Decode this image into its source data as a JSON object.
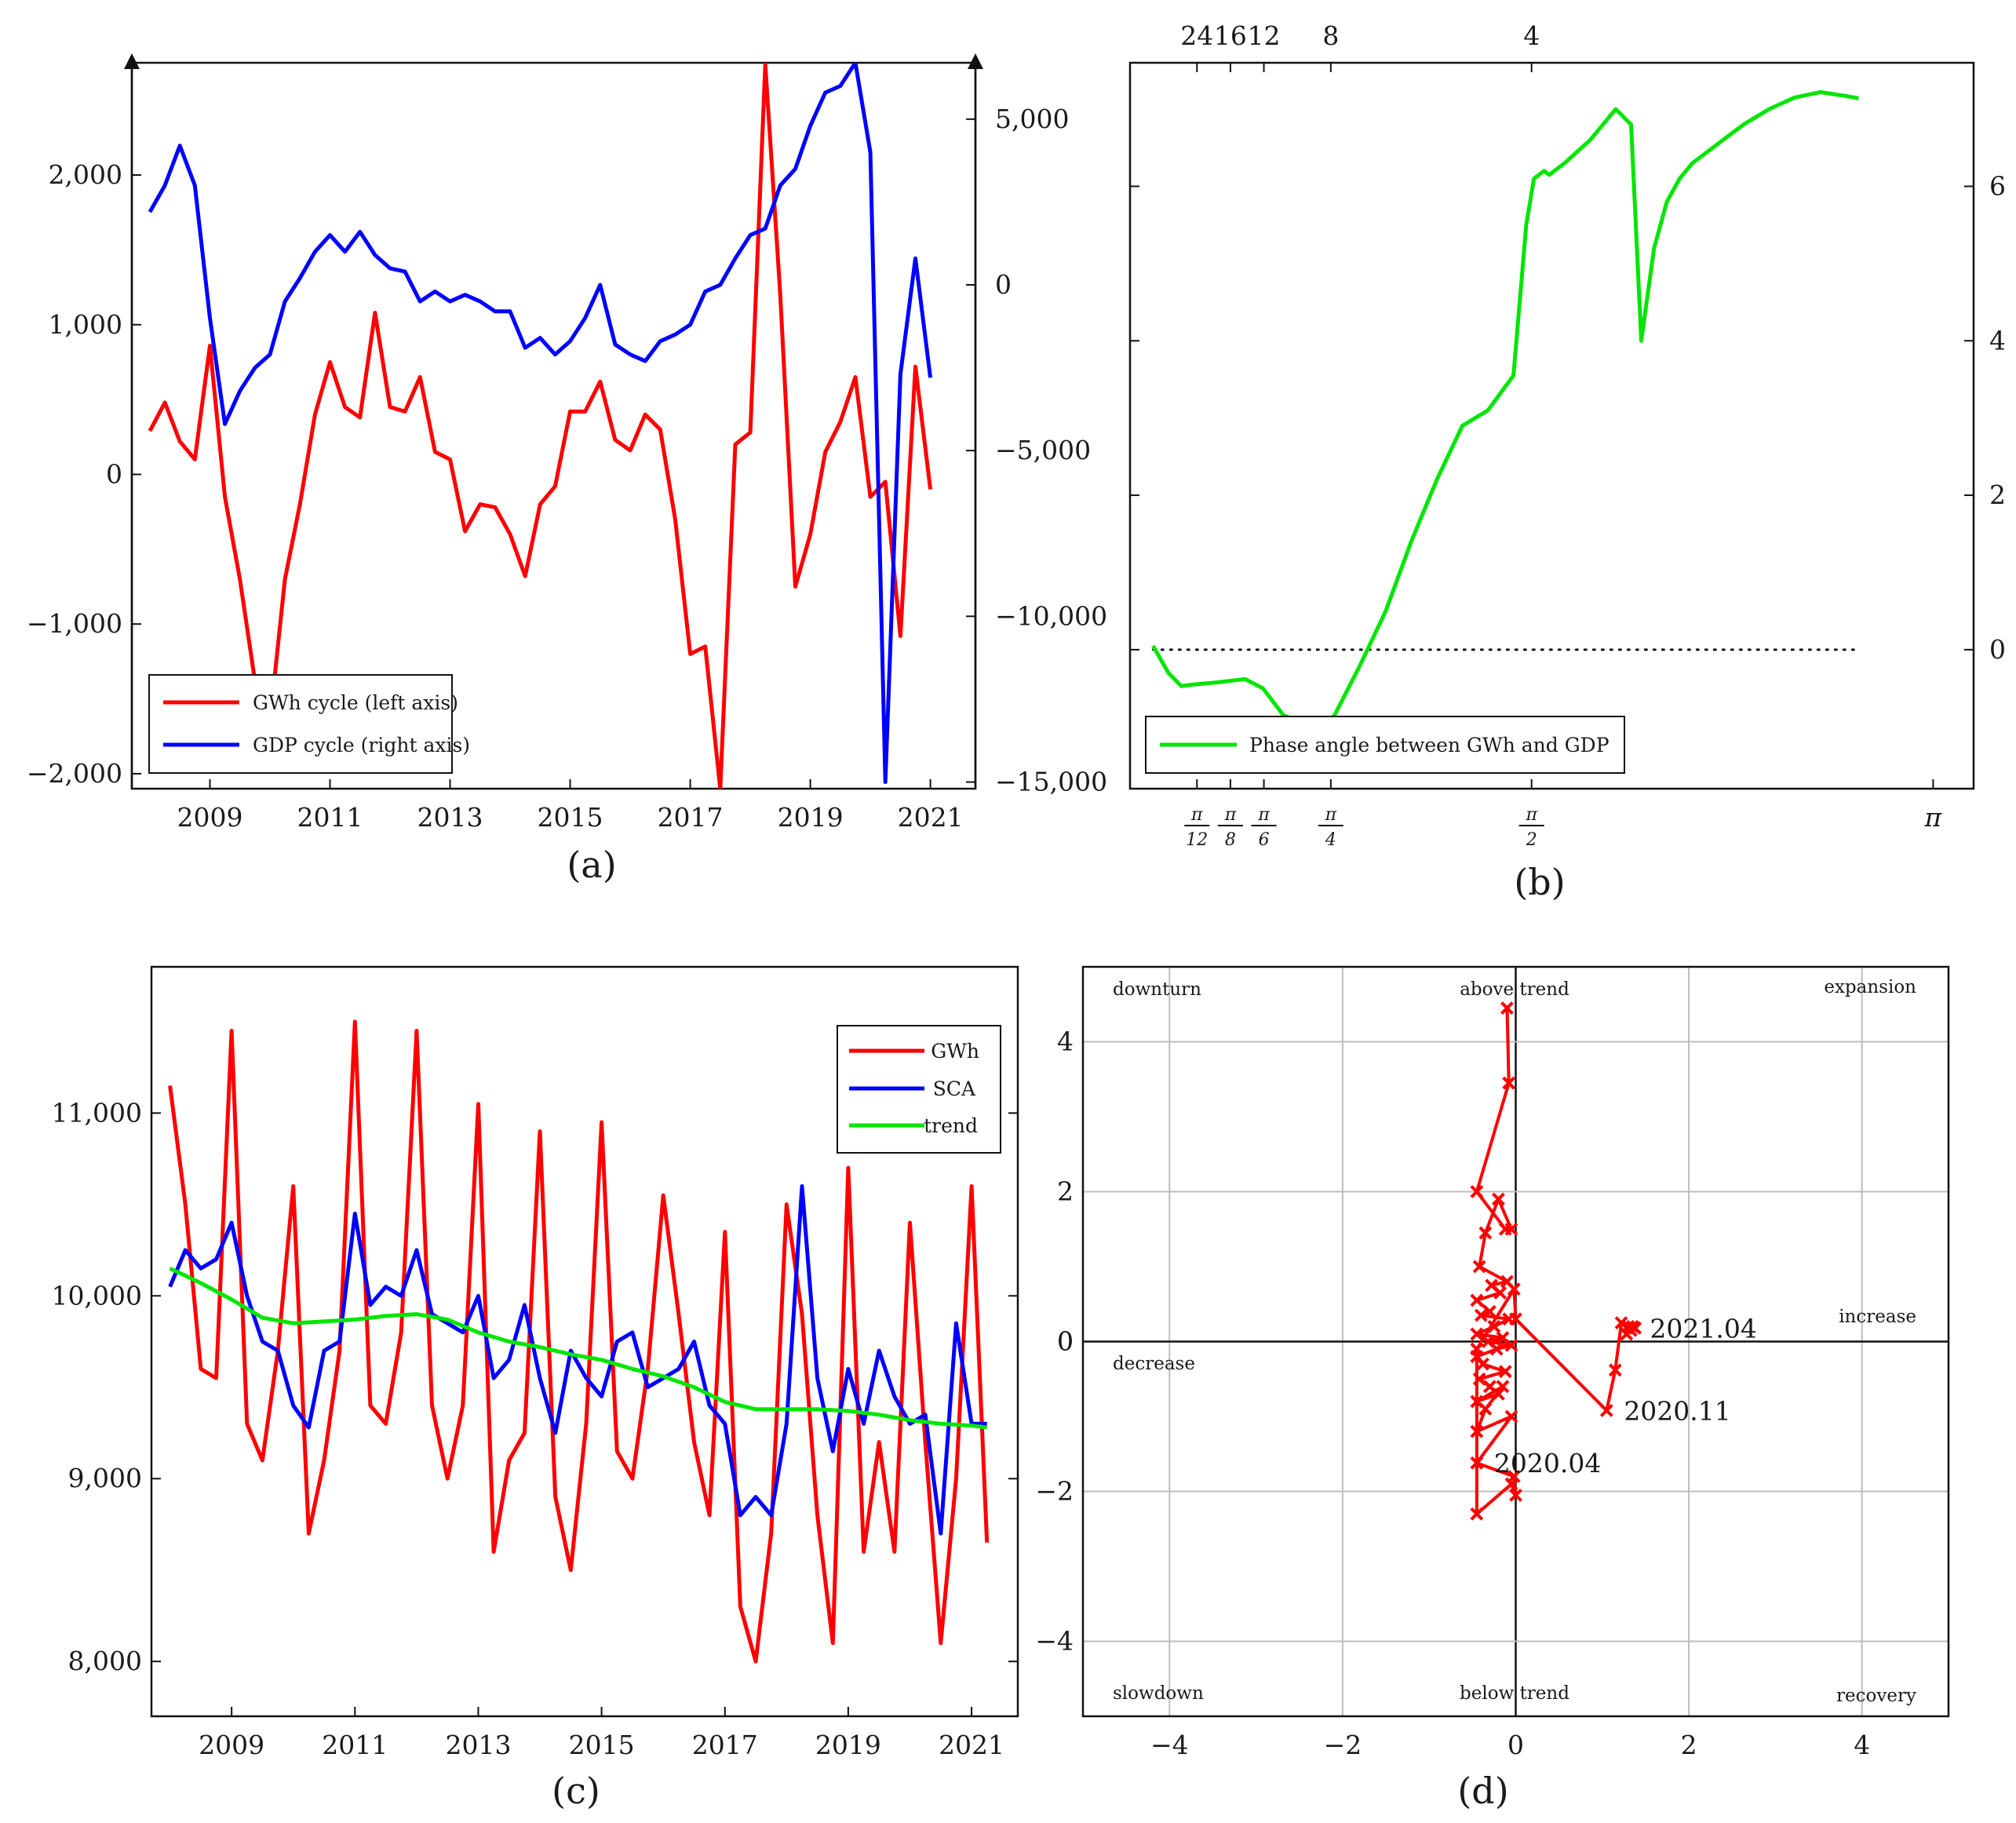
{
  "colors": {
    "gwh": "#ff0000",
    "gdp": "#0000ff",
    "sca": "#0000ff",
    "trend": "#00e600",
    "phase": "#00e600",
    "axis": "#111111",
    "grid": "#bdbdbd"
  },
  "chart_data": [
    {
      "panel_label": "(a)",
      "type": "line",
      "x_ticks": [
        "2009",
        "2011",
        "2013",
        "2015",
        "2017",
        "2019",
        "2021"
      ],
      "left_ticks": [
        "2,000",
        "1,000",
        "0",
        "−1,000",
        "−2,000"
      ],
      "right_ticks": [
        "5,000",
        "0",
        "−5,000",
        "−10,000",
        "−15,000"
      ],
      "xlim": [
        2007.7,
        2021.75
      ],
      "ylim_left": [
        -2100,
        2750
      ],
      "ylim_right": [
        -15200,
        6700
      ],
      "legend": [
        "GWh cycle (left axis)",
        "GDP cycle (right axis)"
      ],
      "series": [
        {
          "name": "GWh cycle (left axis)",
          "axis": "left",
          "x": [
            2008.0,
            2008.25,
            2008.5,
            2008.75,
            2009.0,
            2009.25,
            2009.5,
            2009.75,
            2010.0,
            2010.25,
            2010.5,
            2010.75,
            2011.0,
            2011.25,
            2011.5,
            2011.75,
            2012.0,
            2012.25,
            2012.5,
            2012.75,
            2013.0,
            2013.25,
            2013.5,
            2013.75,
            2014.0,
            2014.25,
            2014.5,
            2014.75,
            2015.0,
            2015.25,
            2015.5,
            2015.75,
            2016.0,
            2016.25,
            2016.5,
            2016.75,
            2017.0,
            2017.25,
            2017.5,
            2017.75,
            2018.0,
            2018.25,
            2018.5,
            2018.75,
            2019.0,
            2019.25,
            2019.5,
            2019.75,
            2020.0,
            2020.25,
            2020.5,
            2020.75,
            2021.0
          ],
          "values": [
            290,
            480,
            220,
            100,
            860,
            -150,
            -700,
            -1380,
            -1650,
            -700,
            -200,
            400,
            750,
            450,
            380,
            1080,
            450,
            420,
            650,
            150,
            100,
            -380,
            -200,
            -220,
            -400,
            -680,
            -200,
            -80,
            420,
            420,
            620,
            230,
            160,
            400,
            300,
            -300,
            -1200,
            -1150,
            -2100,
            200,
            280,
            2740,
            1200,
            -750,
            -400,
            150,
            350,
            650,
            -150,
            -50,
            -1080,
            720,
            -100
          ]
        },
        {
          "name": "GDP cycle (right axis)",
          "axis": "right",
          "x": [
            2008.0,
            2008.25,
            2008.5,
            2008.75,
            2009.0,
            2009.25,
            2009.5,
            2009.75,
            2010.0,
            2010.25,
            2010.5,
            2010.75,
            2011.0,
            2011.25,
            2011.5,
            2011.75,
            2012.0,
            2012.25,
            2012.5,
            2012.75,
            2013.0,
            2013.25,
            2013.5,
            2013.75,
            2014.0,
            2014.25,
            2014.5,
            2014.75,
            2015.0,
            2015.25,
            2015.5,
            2015.75,
            2016.0,
            2016.25,
            2016.5,
            2016.75,
            2017.0,
            2017.25,
            2017.5,
            2017.75,
            2018.0,
            2018.25,
            2018.5,
            2018.75,
            2019.0,
            2019.25,
            2019.5,
            2019.75,
            2020.0,
            2020.25,
            2020.5,
            2020.75,
            2021.0
          ],
          "values": [
            2200,
            3000,
            4200,
            3000,
            -1000,
            -4200,
            -3200,
            -2500,
            -2100,
            -500,
            200,
            1000,
            1500,
            1000,
            1600,
            900,
            500,
            400,
            -500,
            -200,
            -500,
            -300,
            -500,
            -800,
            -800,
            -1900,
            -1600,
            -2100,
            -1700,
            -1000,
            0,
            -1800,
            -2100,
            -2300,
            -1700,
            -1500,
            -1200,
            -200,
            0,
            800,
            1500,
            1700,
            3000,
            3500,
            4800,
            5800,
            6000,
            6700,
            4000,
            -15000,
            -2700,
            800,
            -2800
          ]
        },
        {
          "name": "GWh cycle (left axis)",
          "axis": "left",
          "legend_only": true,
          "x": [],
          "values": []
        }
      ]
    },
    {
      "panel_label": "(b)",
      "type": "line",
      "x_ticks_top": [
        "24",
        "16",
        "12",
        "8",
        "4"
      ],
      "x_ticks_bottom": [
        [
          "π",
          "12"
        ],
        [
          "π",
          "8"
        ],
        [
          "π",
          "6"
        ],
        [
          "π",
          "4"
        ],
        [
          "π",
          "2"
        ],
        [
          "π"
        ]
      ],
      "right_ticks": [
        "6",
        "4",
        "2",
        "0"
      ],
      "xlim": [
        0.0,
        3.3
      ],
      "ylim": [
        -1.8,
        7.6
      ],
      "legend": [
        "Phase angle between GWh and GDP"
      ],
      "reference_line_y": 0,
      "series": [
        {
          "name": "Phase angle between GWh and GDP",
          "x": [
            0.09,
            0.15,
            0.2,
            0.25,
            0.35,
            0.45,
            0.52,
            0.6,
            0.68,
            0.75,
            0.8,
            0.9,
            1.0,
            1.1,
            1.2,
            1.3,
            1.4,
            1.5,
            1.55,
            1.58,
            1.62,
            1.64,
            1.7,
            1.8,
            1.85,
            1.9,
            1.96,
            2.0,
            2.05,
            2.1,
            2.15,
            2.2,
            2.3,
            2.4,
            2.5,
            2.6,
            2.7,
            2.8,
            2.85
          ],
          "values": [
            0.05,
            -0.3,
            -0.47,
            -0.45,
            -0.42,
            -0.38,
            -0.5,
            -0.85,
            -0.95,
            -1.0,
            -0.85,
            -0.2,
            0.5,
            1.4,
            2.2,
            2.9,
            3.1,
            3.55,
            5.5,
            6.1,
            6.2,
            6.15,
            6.3,
            6.6,
            6.8,
            7.0,
            6.8,
            4.0,
            5.2,
            5.8,
            6.1,
            6.3,
            6.55,
            6.8,
            7.0,
            7.15,
            7.22,
            7.17,
            7.14
          ]
        }
      ]
    },
    {
      "panel_label": "(c)",
      "type": "line",
      "x_ticks": [
        "2009",
        "2011",
        "2013",
        "2015",
        "2017",
        "2019",
        "2021"
      ],
      "y_ticks": [
        "11,000",
        "10,000",
        "9,000",
        "8,000"
      ],
      "xlim": [
        2007.7,
        2021.75
      ],
      "ylim": [
        7700,
        11800
      ],
      "legend": [
        "GWh",
        "SCA",
        "trend"
      ],
      "series": [
        {
          "name": "GWh",
          "x": [
            2008.0,
            2008.25,
            2008.5,
            2008.75,
            2009.0,
            2009.25,
            2009.5,
            2009.75,
            2010.0,
            2010.25,
            2010.5,
            2010.75,
            2011.0,
            2011.25,
            2011.5,
            2011.75,
            2012.0,
            2012.25,
            2012.5,
            2012.75,
            2013.0,
            2013.25,
            2013.5,
            2013.75,
            2014.0,
            2014.25,
            2014.5,
            2014.75,
            2015.0,
            2015.25,
            2015.5,
            2015.75,
            2016.0,
            2016.25,
            2016.5,
            2016.75,
            2017.0,
            2017.25,
            2017.5,
            2017.75,
            2018.0,
            2018.25,
            2018.5,
            2018.75,
            2019.0,
            2019.25,
            2019.5,
            2019.75,
            2020.0,
            2020.25,
            2020.5,
            2020.75,
            2021.0,
            2021.25
          ],
          "values": [
            11150,
            10500,
            9600,
            9550,
            11450,
            9300,
            9100,
            9700,
            10600,
            8700,
            9100,
            9700,
            11500,
            9400,
            9300,
            9800,
            11450,
            9400,
            9000,
            9400,
            11050,
            8600,
            9100,
            9250,
            10900,
            8900,
            8500,
            9300,
            10950,
            9150,
            9000,
            9600,
            10550,
            9900,
            9200,
            8800,
            10350,
            8300,
            8000,
            8700,
            10500,
            9900,
            8800,
            8100,
            10700,
            8600,
            9200,
            8600,
            10400,
            9200,
            8100,
            9000,
            10600,
            8650
          ]
        },
        {
          "name": "SCA",
          "x": [
            2008.0,
            2008.25,
            2008.5,
            2008.75,
            2009.0,
            2009.25,
            2009.5,
            2009.75,
            2010.0,
            2010.25,
            2010.5,
            2010.75,
            2011.0,
            2011.25,
            2011.5,
            2011.75,
            2012.0,
            2012.25,
            2012.5,
            2012.75,
            2013.0,
            2013.25,
            2013.5,
            2013.75,
            2014.0,
            2014.25,
            2014.5,
            2014.75,
            2015.0,
            2015.25,
            2015.5,
            2015.75,
            2016.0,
            2016.25,
            2016.5,
            2016.75,
            2017.0,
            2017.25,
            2017.5,
            2017.75,
            2018.0,
            2018.25,
            2018.5,
            2018.75,
            2019.0,
            2019.25,
            2019.5,
            2019.75,
            2020.0,
            2020.25,
            2020.5,
            2020.75,
            2021.0,
            2021.25
          ],
          "values": [
            10050,
            10250,
            10150,
            10200,
            10400,
            10000,
            9750,
            9700,
            9400,
            9280,
            9700,
            9750,
            10450,
            9950,
            10050,
            10000,
            10250,
            9900,
            9850,
            9800,
            10000,
            9550,
            9650,
            9950,
            9550,
            9250,
            9700,
            9550,
            9450,
            9750,
            9800,
            9500,
            9550,
            9600,
            9750,
            9400,
            9300,
            8800,
            8900,
            8800,
            9300,
            10600,
            9550,
            9150,
            9600,
            9300,
            9700,
            9450,
            9300,
            9350,
            8700,
            9850,
            9300,
            9300
          ]
        },
        {
          "name": "trend",
          "x": [
            2008.0,
            2008.5,
            2009.0,
            2009.5,
            2010.0,
            2010.5,
            2011.0,
            2011.5,
            2012.0,
            2012.5,
            2013.0,
            2013.5,
            2014.0,
            2014.5,
            2015.0,
            2015.5,
            2016.0,
            2016.5,
            2017.0,
            2017.5,
            2018.0,
            2018.5,
            2019.0,
            2019.5,
            2020.0,
            2020.5,
            2021.0,
            2021.25
          ],
          "values": [
            10150,
            10070,
            9980,
            9880,
            9850,
            9860,
            9870,
            9890,
            9900,
            9870,
            9800,
            9750,
            9720,
            9680,
            9650,
            9600,
            9560,
            9500,
            9420,
            9380,
            9380,
            9380,
            9370,
            9350,
            9320,
            9300,
            9290,
            9280
          ]
        }
      ]
    },
    {
      "panel_label": "(d)",
      "type": "scatter",
      "x_ticks": [
        -4,
        -2,
        0,
        2,
        4
      ],
      "y_ticks": [
        4,
        2,
        0,
        -2,
        -4
      ],
      "xlim": [
        -5,
        5
      ],
      "ylim": [
        -5,
        5
      ],
      "grid": true,
      "quadrant_labels": {
        "top_left": "downturn",
        "top_center": "above trend",
        "top_right": "expansion",
        "middle_left": "decrease",
        "middle_right": "increase",
        "bottom_left": "slowdown",
        "bottom_center": "below trend",
        "bottom_right": "recovery"
      },
      "annotations": [
        {
          "text": "2021.04",
          "x": 1.35,
          "y": 0.18
        },
        {
          "text": "2020.11",
          "x": 1.05,
          "y": -0.92
        },
        {
          "text": "2020.04",
          "x": -0.45,
          "y": -1.62
        }
      ],
      "series": [
        {
          "name": "",
          "x": [
            -0.1,
            -0.08,
            -0.45,
            -0.12,
            -0.05,
            -0.2,
            -0.35,
            -0.42,
            -0.1,
            -0.28,
            -0.18,
            -0.45,
            -0.3,
            -0.4,
            -0.08,
            -0.25,
            -0.45,
            -0.15,
            -0.32,
            -0.05,
            -0.22,
            -0.45,
            -0.38,
            -0.12,
            -0.42,
            -0.3,
            -0.2,
            -0.45,
            -0.15,
            -0.35,
            -0.45,
            -0.05,
            -0.45,
            -0.02,
            0.0,
            -0.05,
            -0.45,
            -0.45,
            -0.02,
            0.0,
            1.05,
            1.15,
            1.22,
            1.3,
            1.28,
            1.35,
            1.33,
            1.38
          ],
          "values": [
            4.45,
            3.45,
            2.0,
            1.5,
            1.5,
            1.9,
            1.45,
            1.0,
            0.8,
            0.75,
            0.65,
            0.55,
            0.4,
            0.35,
            0.3,
            0.2,
            0.1,
            0.05,
            0.0,
            -0.05,
            -0.1,
            -0.2,
            -0.3,
            -0.4,
            -0.5,
            -0.6,
            -0.7,
            -0.8,
            -0.6,
            -0.9,
            -1.2,
            -1.0,
            -1.62,
            -1.8,
            -2.05,
            -1.9,
            -2.3,
            -0.1,
            0.7,
            0.3,
            -0.92,
            -0.38,
            0.25,
            0.2,
            0.1,
            0.2,
            0.15,
            0.18
          ]
        }
      ]
    }
  ]
}
